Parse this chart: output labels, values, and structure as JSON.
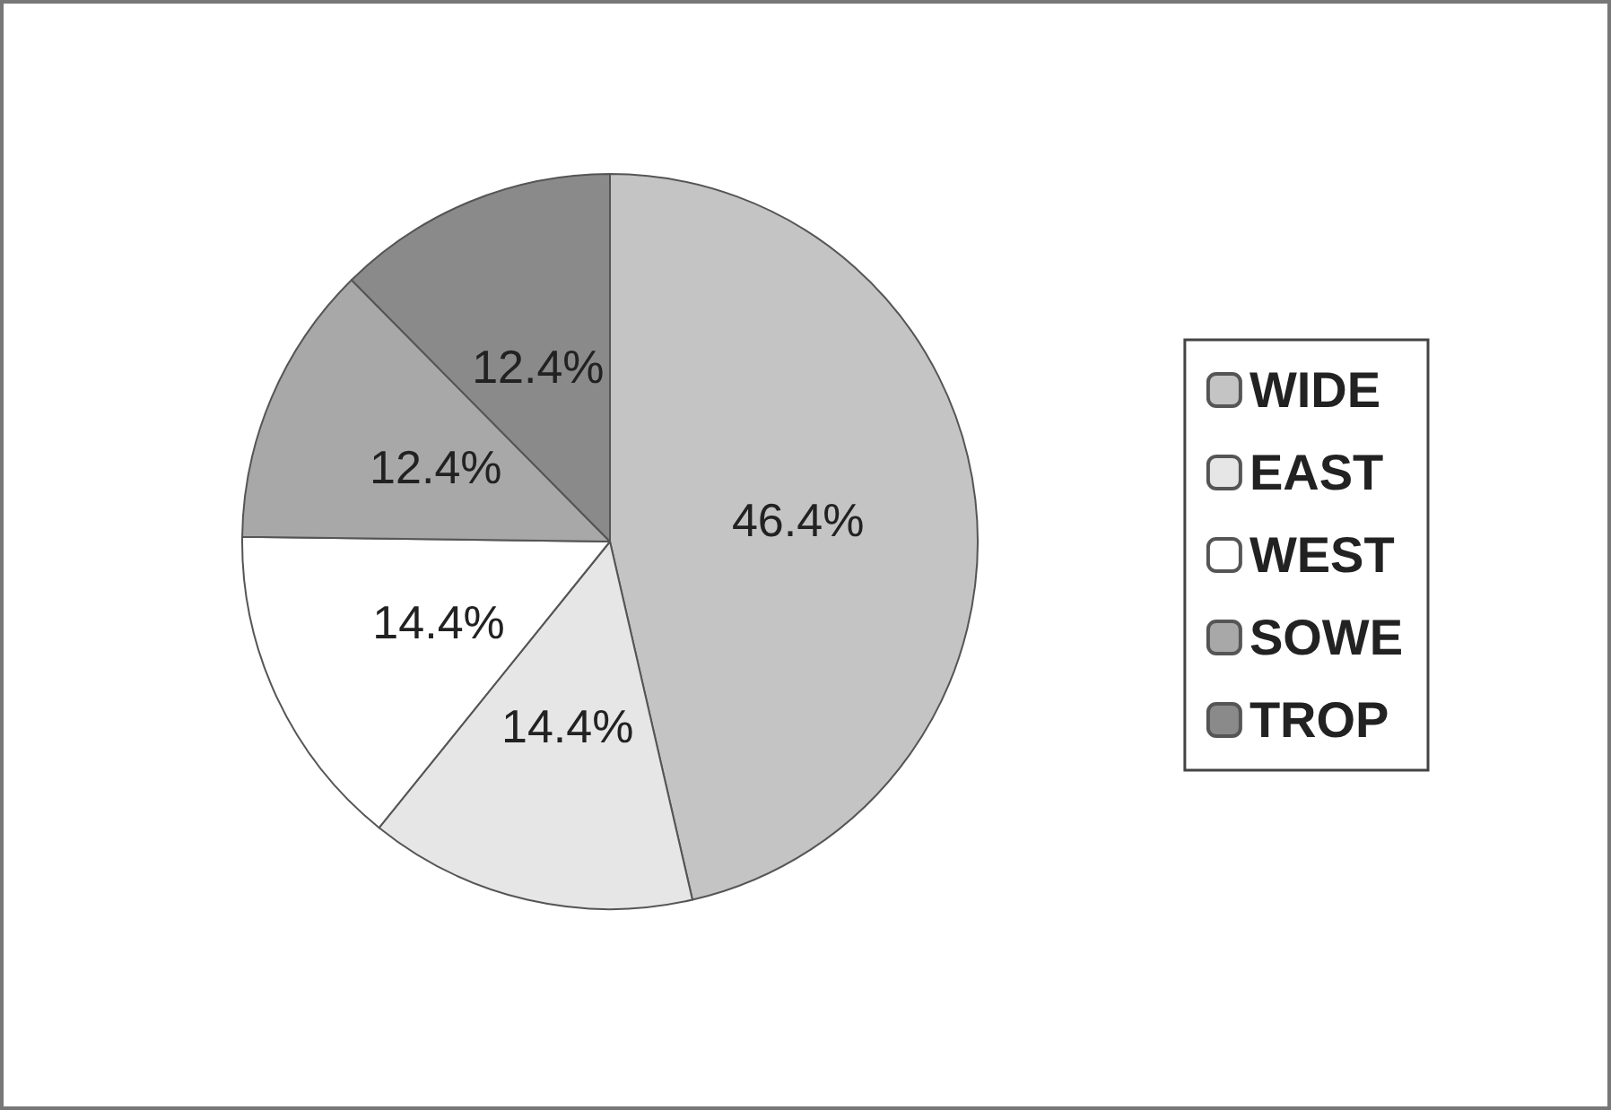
{
  "chart_data": {
    "type": "pie",
    "categories": [
      "WIDE",
      "EAST",
      "WEST",
      "SOWE",
      "TROP"
    ],
    "values": [
      46.4,
      14.4,
      14.4,
      12.4,
      12.4
    ],
    "colors": [
      "#c4c4c4",
      "#e6e6e6",
      "#ffffff",
      "#a8a8a8",
      "#8a8a8a"
    ],
    "value_labels": [
      "46.4%",
      "14.4%",
      "14.4%",
      "12.4%",
      "12.4%"
    ],
    "legend": "right"
  }
}
